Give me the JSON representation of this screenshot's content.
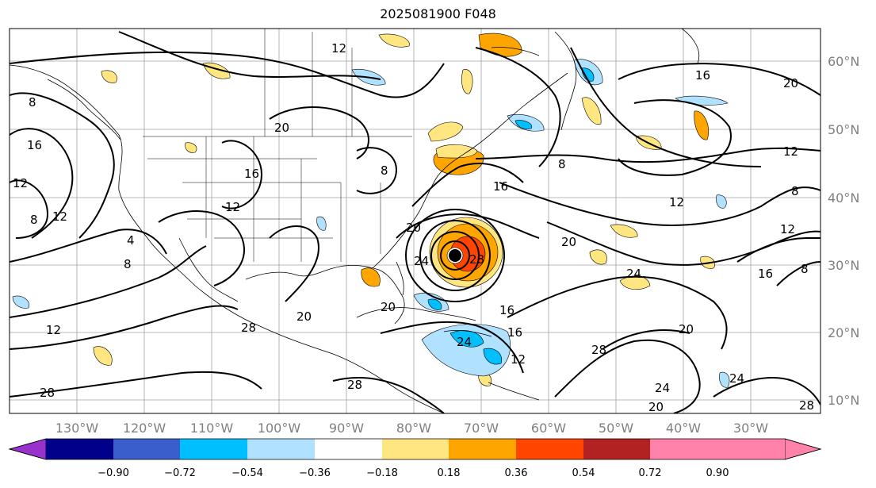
{
  "title": "2025081900 F048",
  "latitude_labels": [
    "60°N",
    "50°N",
    "40°N",
    "30°N",
    "20°N",
    "10°N"
  ],
  "longitude_labels": [
    "130°W",
    "120°W",
    "110°W",
    "100°W",
    "90°W",
    "80°W",
    "70°W",
    "60°W",
    "50°W",
    "40°W",
    "30°W"
  ],
  "colorbar": {
    "ticks": [
      "−0.90",
      "−0.72",
      "−0.54",
      "−0.36",
      "−0.18",
      "0.18",
      "0.36",
      "0.54",
      "0.72",
      "0.90"
    ],
    "colors": [
      "#9932cc",
      "#00008b",
      "#3a5fcd",
      "#00bfff",
      "#b0e2ff",
      "#ffffff",
      "#ffe680",
      "#ffa500",
      "#ff4500",
      "#b22222",
      "#ff82ab"
    ]
  },
  "contour_labels": {
    "l1": "16",
    "l2": "20",
    "l3": "12",
    "l4": "8",
    "l5": "16",
    "l6": "12",
    "l7": "12",
    "l8": "8",
    "l9": "4",
    "l10": "8",
    "l11": "12",
    "l12": "20",
    "l13": "16",
    "l14": "12",
    "l15": "8",
    "l16": "20",
    "l17": "16",
    "l18": "20",
    "l19": "24",
    "l20": "28",
    "l21": "20",
    "l22": "24",
    "l23": "12",
    "l24": "16",
    "l25": "20",
    "l26": "28",
    "l27": "28",
    "l28": "24",
    "l29": "28",
    "l30": "20",
    "l31": "28",
    "l32": "16",
    "l33": "20",
    "l34": "24",
    "l35": "12",
    "l36": "8",
    "l37": "12",
    "l38": "8",
    "l39": "8",
    "l40": "28",
    "l41": "12",
    "l42": "16",
    "l43": "24"
  }
}
